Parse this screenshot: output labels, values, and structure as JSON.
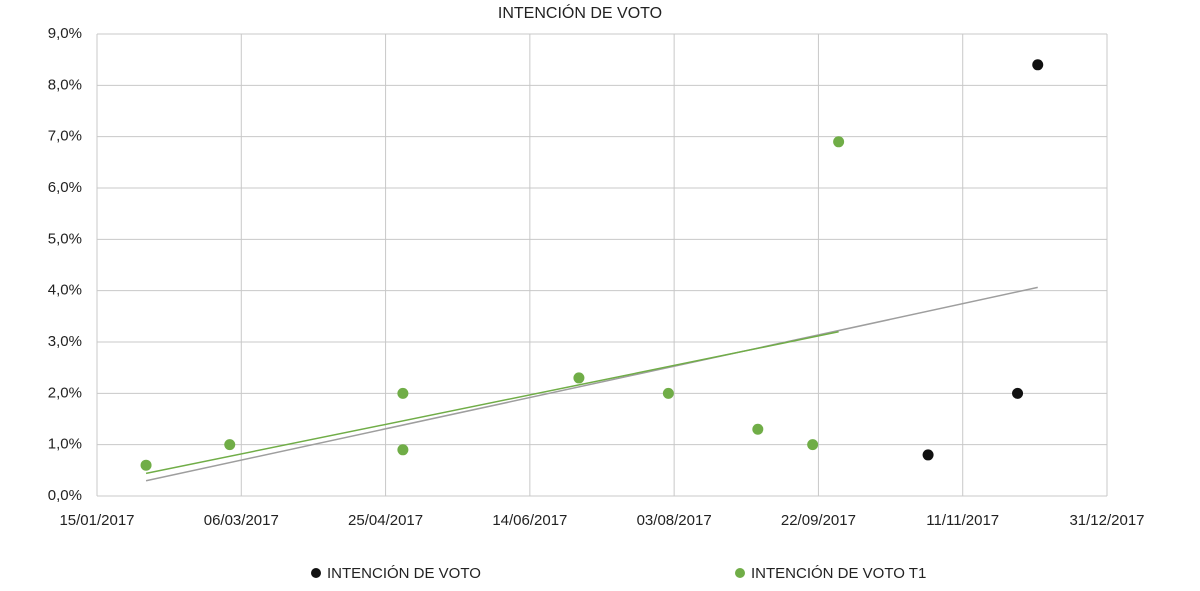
{
  "chart_data": {
    "type": "scatter",
    "title": "INTENCIÓN DE VOTO",
    "series": [
      {
        "name": "INTENCIÓN DE VOTO",
        "color": "#111111",
        "x": [
          "2017-10-30",
          "2017-11-30",
          "2017-12-07"
        ],
        "values": [
          0.8,
          2.0,
          8.4
        ]
      },
      {
        "name": "INTENCIÓN DE VOTO T1",
        "color": "#70ad47",
        "x": [
          "2017-02-01",
          "2017-03-02",
          "2017-05-01",
          "2017-05-01",
          "2017-07-01",
          "2017-08-01",
          "2017-09-01",
          "2017-09-20",
          "2017-09-29"
        ],
        "values": [
          0.6,
          1.0,
          2.0,
          0.9,
          2.3,
          2.0,
          1.3,
          1.0,
          6.9
        ],
        "trendline": true
      }
    ],
    "trendline_all_series": {
      "color": "#9e9e9e"
    },
    "xlim": [
      "2017-01-15",
      "2017-12-31"
    ],
    "xticks": [
      {
        "value": "2017-01-15",
        "label": "15/01/2017"
      },
      {
        "value": "2017-03-06",
        "label": "06/03/2017"
      },
      {
        "value": "2017-04-25",
        "label": "25/04/2017"
      },
      {
        "value": "2017-06-14",
        "label": "14/06/2017"
      },
      {
        "value": "2017-08-03",
        "label": "03/08/2017"
      },
      {
        "value": "2017-09-22",
        "label": "22/09/2017"
      },
      {
        "value": "2017-11-11",
        "label": "11/11/2017"
      },
      {
        "value": "2017-12-31",
        "label": "31/12/2017"
      }
    ],
    "ylim": [
      0,
      9
    ],
    "yticks": [
      {
        "value": 0,
        "label": "0,0%"
      },
      {
        "value": 1,
        "label": "1,0%"
      },
      {
        "value": 2,
        "label": "2,0%"
      },
      {
        "value": 3,
        "label": "3,0%"
      },
      {
        "value": 4,
        "label": "4,0%"
      },
      {
        "value": 5,
        "label": "5,0%"
      },
      {
        "value": 6,
        "label": "6,0%"
      },
      {
        "value": 7,
        "label": "7,0%"
      },
      {
        "value": 8,
        "label": "8,0%"
      },
      {
        "value": 9,
        "label": "9,0%"
      }
    ],
    "grid": true,
    "legend": "bottom"
  }
}
